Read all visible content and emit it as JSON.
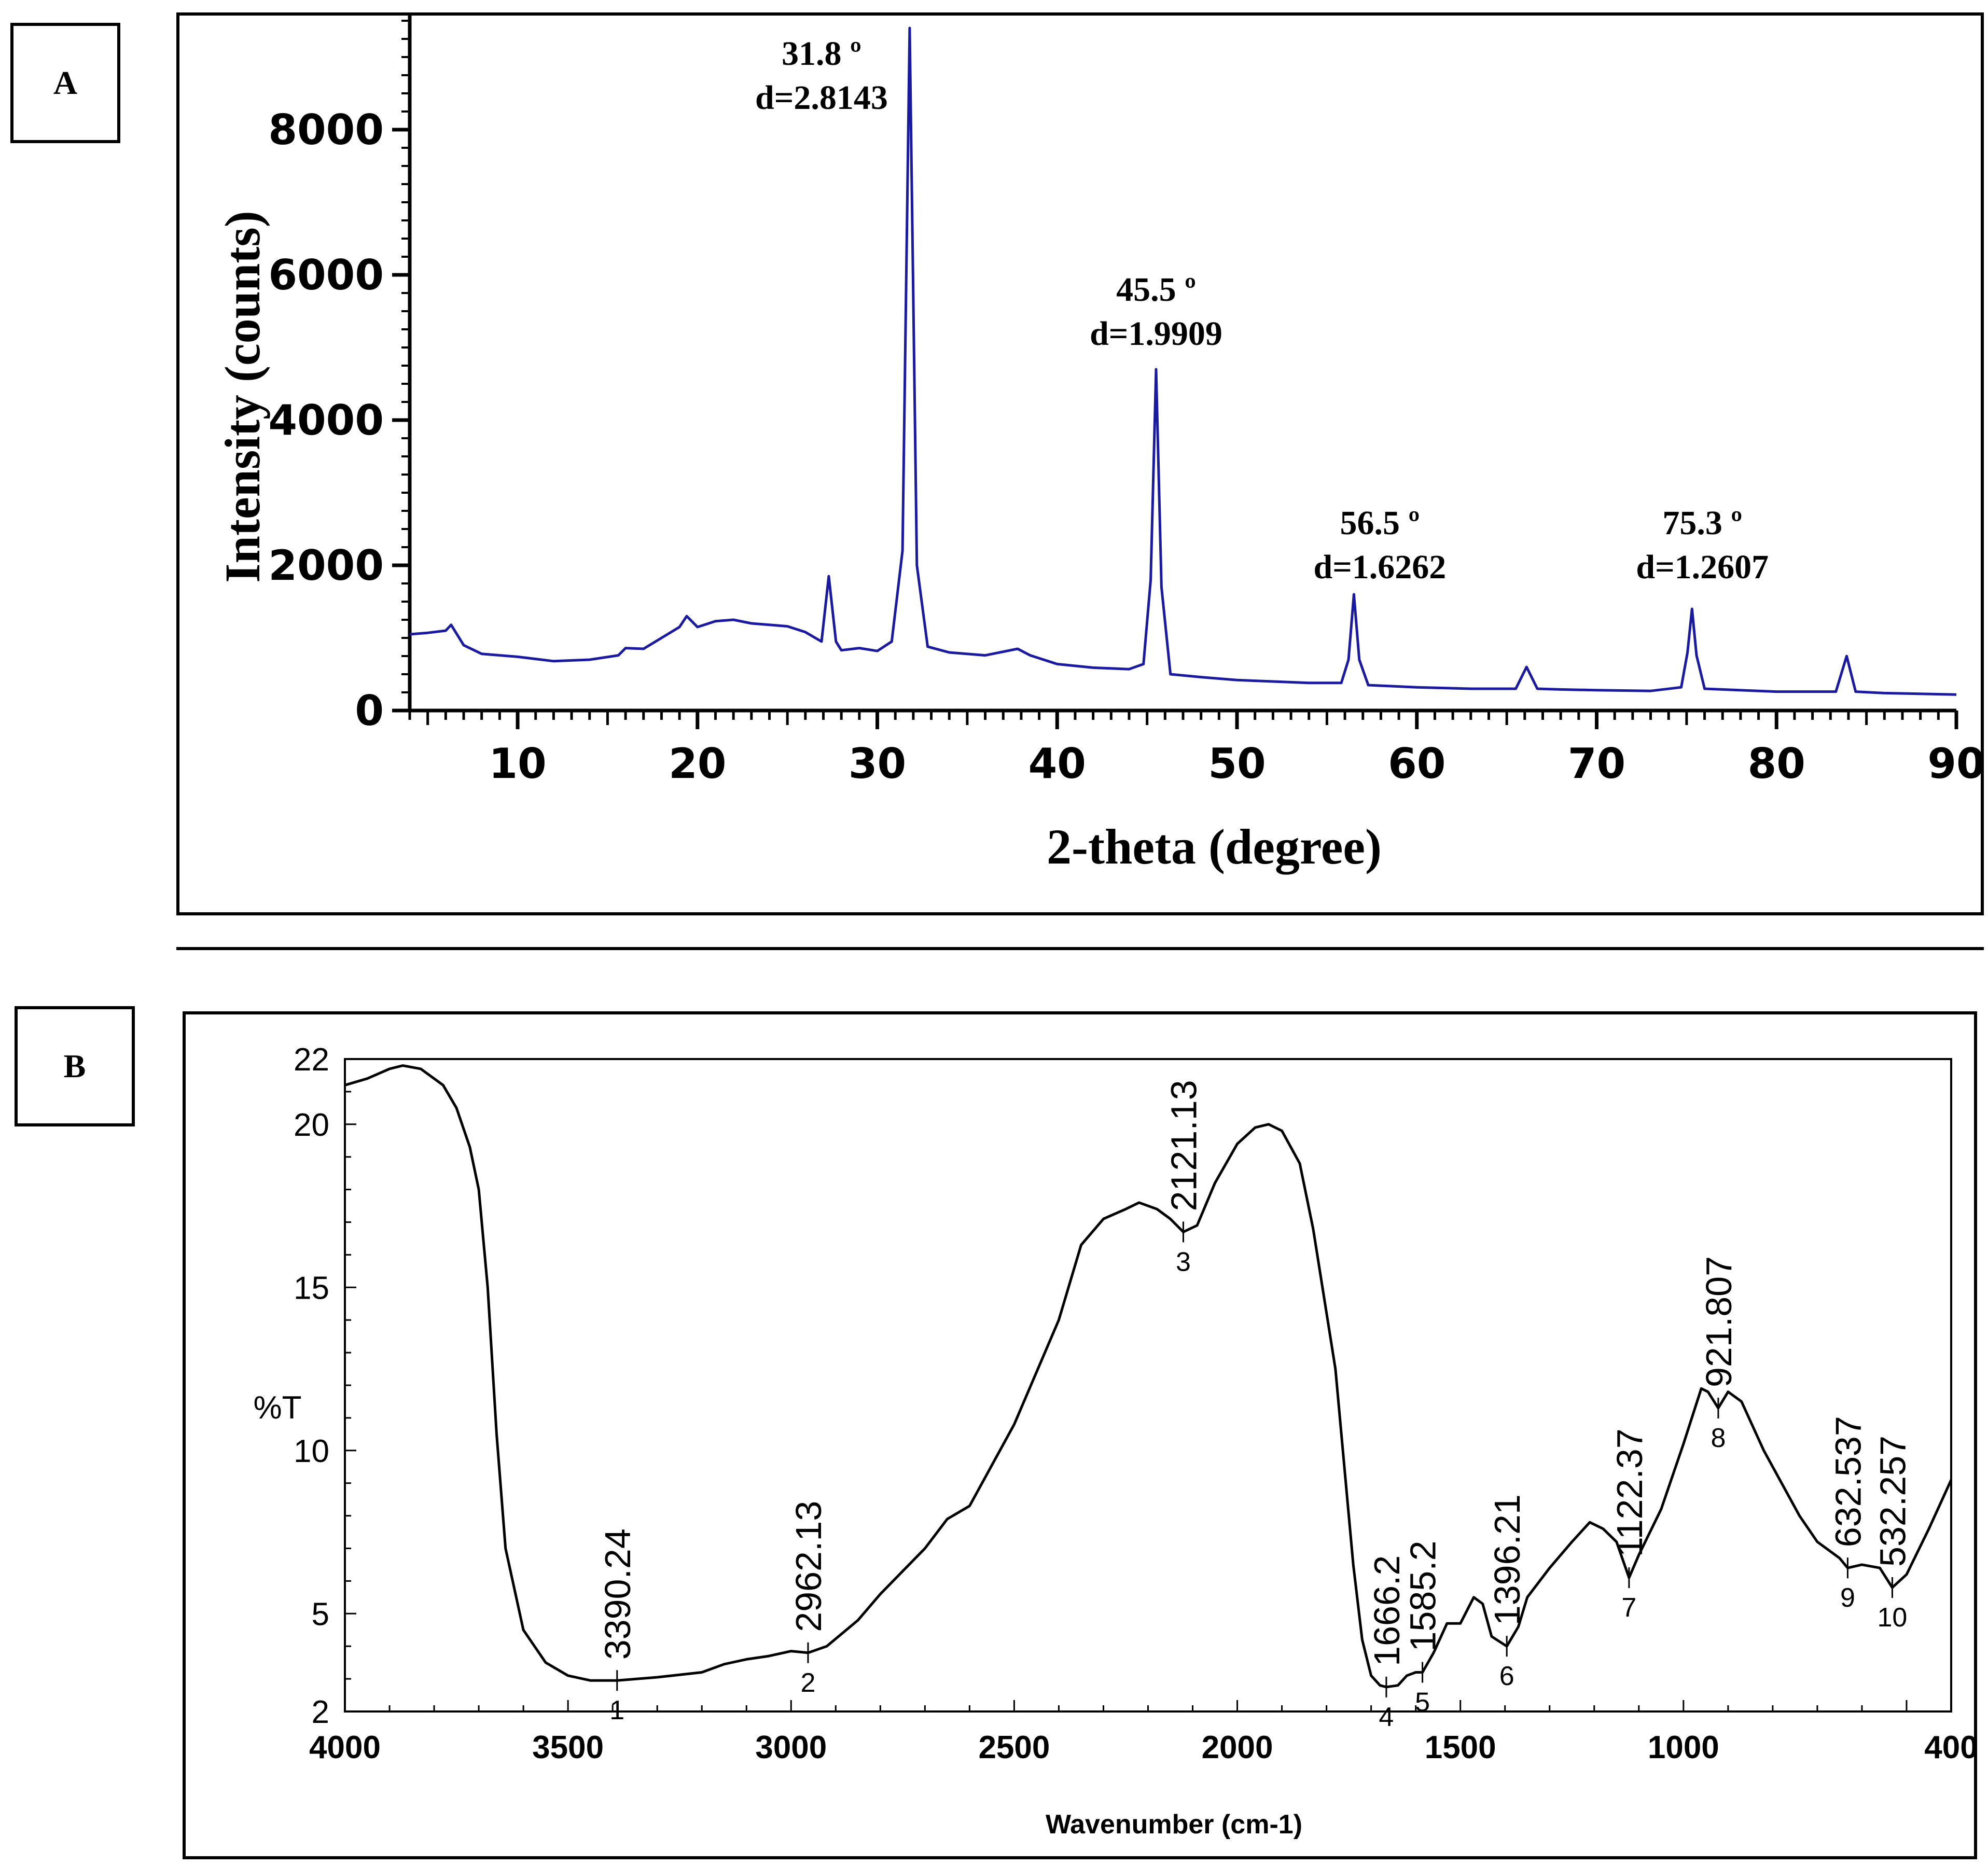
{
  "panels": {
    "a": "A",
    "b": "B"
  },
  "chart_data": [
    {
      "id": "xrd",
      "type": "line",
      "xlabel": "2-theta (degree)",
      "ylabel": "Intensity (counts)",
      "xlim": [
        4,
        90
      ],
      "ylim": [
        0,
        9500
      ],
      "xticks": [
        10,
        20,
        30,
        40,
        50,
        60,
        70,
        80,
        90
      ],
      "yticks": [
        0,
        2000,
        4000,
        6000,
        8000
      ],
      "line_color": "#1a1aa0",
      "x": [
        4,
        5,
        6,
        6.3,
        7,
        8,
        10,
        12,
        14,
        15.6,
        16,
        17,
        18,
        19,
        19.4,
        20,
        21,
        22,
        23,
        24,
        25,
        26,
        26.9,
        27.3,
        27.7,
        28,
        29,
        30,
        30.8,
        31.4,
        31.8,
        32.2,
        32.8,
        34,
        36,
        37.8,
        38.5,
        40,
        42,
        44,
        44.8,
        45.2,
        45.5,
        45.8,
        46.3,
        48,
        50,
        52,
        54,
        55.8,
        56.2,
        56.5,
        56.8,
        57.3,
        60,
        63,
        65.5,
        66.1,
        66.7,
        68,
        70,
        73,
        74.7,
        75.05,
        75.3,
        75.55,
        76,
        80,
        83.3,
        83.9,
        84.4,
        86,
        90
      ],
      "y": [
        1050,
        1070,
        1100,
        1180,
        900,
        780,
        740,
        680,
        700,
        760,
        860,
        850,
        1000,
        1150,
        1300,
        1150,
        1230,
        1250,
        1200,
        1180,
        1160,
        1080,
        950,
        1850,
        950,
        830,
        860,
        820,
        950,
        2200,
        9400,
        2000,
        880,
        800,
        760,
        850,
        760,
        640,
        590,
        570,
        640,
        1800,
        4700,
        1700,
        500,
        460,
        420,
        400,
        380,
        380,
        700,
        1600,
        700,
        350,
        320,
        300,
        300,
        600,
        300,
        290,
        280,
        270,
        320,
        800,
        1400,
        760,
        300,
        260,
        260,
        750,
        260,
        240,
        220
      ],
      "annotations": [
        {
          "x": 31.8,
          "angle": "31.8 º",
          "d": "d=2.8143"
        },
        {
          "x": 45.5,
          "angle": "45.5 º",
          "d": "d=1.9909"
        },
        {
          "x": 56.5,
          "angle": "56.5 º",
          "d": "d=1.6262"
        },
        {
          "x": 75.3,
          "angle": "75.3 º",
          "d": "d=1.2607"
        }
      ]
    },
    {
      "id": "ftir",
      "type": "line",
      "xlabel": "Wavenumber (cm-1)",
      "ylabel": "%T",
      "xlim": [
        4000,
        400
      ],
      "ylim": [
        2,
        22
      ],
      "xticks": [
        4000,
        3500,
        3000,
        2500,
        2000,
        1500,
        1000,
        400
      ],
      "yticks": [
        2,
        5,
        10,
        15,
        20,
        22
      ],
      "line_color": "#000000",
      "x": [
        4000,
        3950,
        3900,
        3870,
        3830,
        3780,
        3750,
        3720,
        3700,
        3680,
        3660,
        3640,
        3600,
        3550,
        3500,
        3450,
        3390,
        3300,
        3200,
        3150,
        3100,
        3050,
        3000,
        2962,
        2920,
        2850,
        2800,
        2700,
        2650,
        2600,
        2500,
        2400,
        2350,
        2300,
        2250,
        2220,
        2180,
        2150,
        2121,
        2090,
        2050,
        2000,
        1960,
        1930,
        1900,
        1860,
        1830,
        1780,
        1760,
        1740,
        1720,
        1700,
        1680,
        1666,
        1640,
        1620,
        1600,
        1585,
        1560,
        1530,
        1500,
        1470,
        1450,
        1430,
        1396,
        1370,
        1350,
        1300,
        1250,
        1210,
        1180,
        1150,
        1122,
        1100,
        1050,
        1000,
        960,
        945,
        922,
        900,
        870,
        820,
        780,
        740,
        700,
        650,
        632,
        600,
        560,
        532,
        500,
        450,
        420,
        400
      ],
      "y": [
        21.2,
        21.4,
        21.7,
        21.8,
        21.7,
        21.2,
        20.5,
        19.3,
        18,
        15,
        10.5,
        7,
        4.5,
        3.5,
        3.1,
        2.95,
        2.95,
        3.05,
        3.2,
        3.45,
        3.6,
        3.7,
        3.85,
        3.8,
        4,
        4.8,
        5.6,
        7,
        7.9,
        8.3,
        10.8,
        14,
        16.3,
        17.1,
        17.4,
        17.6,
        17.4,
        17.1,
        16.7,
        16.9,
        18.2,
        19.4,
        19.9,
        20,
        19.8,
        18.8,
        16.8,
        12.5,
        9.5,
        6.5,
        4.2,
        3.1,
        2.8,
        2.75,
        2.8,
        3.1,
        3.2,
        3.2,
        3.8,
        4.7,
        4.7,
        5.5,
        5.3,
        4.3,
        4,
        4.6,
        5.5,
        6.4,
        7.2,
        7.8,
        7.6,
        7.2,
        6.1,
        6.8,
        8.2,
        10.2,
        11.9,
        11.8,
        11.3,
        11.8,
        11.5,
        10,
        9,
        8,
        7.2,
        6.7,
        6.4,
        6.5,
        6.4,
        5.8,
        6.2,
        7.6,
        8.5,
        9.1
      ],
      "peaks": [
        {
          "n": "1",
          "wn": 3390,
          "t": 2.95,
          "label": "3390.24"
        },
        {
          "n": "2",
          "wn": 2962,
          "t": 3.8,
          "label": "2962.13"
        },
        {
          "n": "3",
          "wn": 2121,
          "t": 16.7,
          "label": "2121.13"
        },
        {
          "n": "4",
          "wn": 1666,
          "t": 2.75,
          "label": "1666.2"
        },
        {
          "n": "5",
          "wn": 1585,
          "t": 3.2,
          "label": "1585.2"
        },
        {
          "n": "6",
          "wn": 1396,
          "t": 4.0,
          "label": "1396.21"
        },
        {
          "n": "7",
          "wn": 1122,
          "t": 6.1,
          "label": "1122.37"
        },
        {
          "n": "8",
          "wn": 922,
          "t": 11.3,
          "label": "921.807"
        },
        {
          "n": "9",
          "wn": 632,
          "t": 6.4,
          "label": "632.537"
        },
        {
          "n": "10",
          "wn": 532,
          "t": 5.8,
          "label": "532.257"
        }
      ]
    }
  ]
}
